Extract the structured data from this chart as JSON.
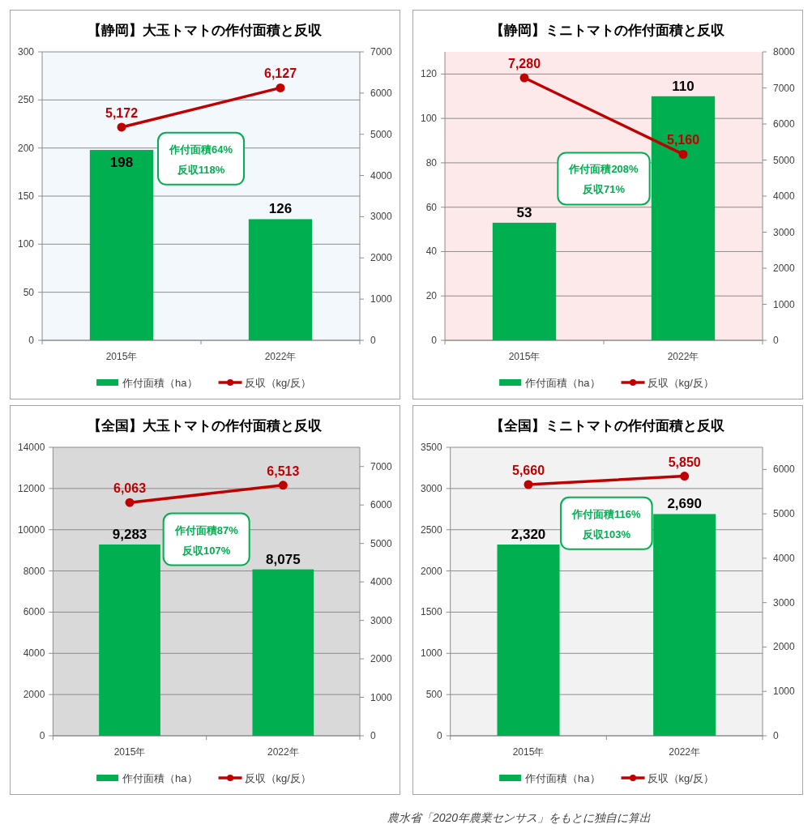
{
  "chart_data": [
    {
      "type": "bar",
      "title": "【静岡】大玉トマトの作付面積と反収",
      "categories": [
        "2015年",
        "2022年"
      ],
      "series": [
        {
          "name": "作付面積（ha）",
          "type": "bar",
          "color": "#00b050",
          "values": [
            198,
            126
          ],
          "value_labels": [
            "198",
            "126"
          ]
        },
        {
          "name": "反収（kg/反）",
          "type": "line",
          "axis": "y2",
          "color": "#c00000",
          "values": [
            5172,
            6127
          ],
          "value_labels": [
            "5,172",
            "6,127"
          ]
        }
      ],
      "ylim": [
        0,
        300
      ],
      "yticks": [
        0,
        50,
        100,
        150,
        200,
        250,
        300
      ],
      "y2lim": [
        0,
        7000
      ],
      "y2ticks": [
        0,
        1000,
        2000,
        3000,
        4000,
        5000,
        6000,
        7000
      ],
      "grid": "y",
      "legend": "bottom",
      "marker": "circle",
      "annotations": [
        "作付面積64%",
        "反収118%"
      ]
    },
    {
      "type": "bar",
      "title": "【静岡】ミニトマトの作付面積と反収",
      "categories": [
        "2015年",
        "2022年"
      ],
      "series": [
        {
          "name": "作付面積（ha）",
          "type": "bar",
          "color": "#00b050",
          "values": [
            53,
            110
          ],
          "value_labels": [
            "53",
            "110"
          ]
        },
        {
          "name": "反収（kg/反）",
          "type": "line",
          "axis": "y2",
          "color": "#c00000",
          "values": [
            7280,
            5160
          ],
          "value_labels": [
            "7,280",
            "5,160"
          ]
        }
      ],
      "ylim": [
        0,
        130
      ],
      "yticks": [
        0,
        20,
        40,
        60,
        80,
        100,
        120
      ],
      "y2lim": [
        0,
        8000
      ],
      "y2ticks": [
        0,
        1000,
        2000,
        3000,
        4000,
        5000,
        6000,
        7000,
        8000
      ],
      "grid": "y",
      "legend": "bottom",
      "marker": "circle",
      "annotations": [
        "作付面積208%",
        "反収71%"
      ]
    },
    {
      "type": "bar",
      "title": "【全国】大玉トマトの作付面積と反収",
      "categories": [
        "2015年",
        "2022年"
      ],
      "series": [
        {
          "name": "作付面積（ha）",
          "type": "bar",
          "color": "#00b050",
          "values": [
            9283,
            8075
          ],
          "value_labels": [
            "9,283",
            "8,075"
          ]
        },
        {
          "name": "反収（kg/反）",
          "type": "line",
          "axis": "y2",
          "color": "#c00000",
          "values": [
            6063,
            6513
          ],
          "value_labels": [
            "6,063",
            "6,513"
          ]
        }
      ],
      "ylim": [
        0,
        14000
      ],
      "yticks": [
        0,
        2000,
        4000,
        6000,
        8000,
        10000,
        12000,
        14000
      ],
      "y2lim": [
        0,
        7500
      ],
      "y2ticks": [
        0,
        1000,
        2000,
        3000,
        4000,
        5000,
        6000,
        7000
      ],
      "grid": "y",
      "legend": "bottom",
      "marker": "circle",
      "annotations": [
        "作付面積87%",
        "反収107%"
      ]
    },
    {
      "type": "bar",
      "title": "【全国】ミニトマトの作付面積と反収",
      "categories": [
        "2015年",
        "2022年"
      ],
      "series": [
        {
          "name": "作付面積（ha）",
          "type": "bar",
          "color": "#00b050",
          "values": [
            2320,
            2690
          ],
          "value_labels": [
            "2,320",
            "2,690"
          ]
        },
        {
          "name": "反収（kg/反）",
          "type": "line",
          "axis": "y2",
          "color": "#c00000",
          "values": [
            5660,
            5850
          ],
          "value_labels": [
            "5,660",
            "5,850"
          ]
        }
      ],
      "ylim": [
        0,
        3500
      ],
      "yticks": [
        0,
        500,
        1000,
        1500,
        2000,
        2500,
        3000,
        3500
      ],
      "y2lim": [
        0,
        6500
      ],
      "y2ticks": [
        0,
        1000,
        2000,
        3000,
        4000,
        5000,
        6000
      ],
      "grid": "y",
      "legend": "bottom",
      "marker": "circle",
      "annotations": [
        "作付面積116%",
        "反収103%"
      ]
    },
    {
      "type": "other",
      "annotations": [
        "農水省「2020年農業センサス」をもとに独自に算出"
      ]
    }
  ]
}
